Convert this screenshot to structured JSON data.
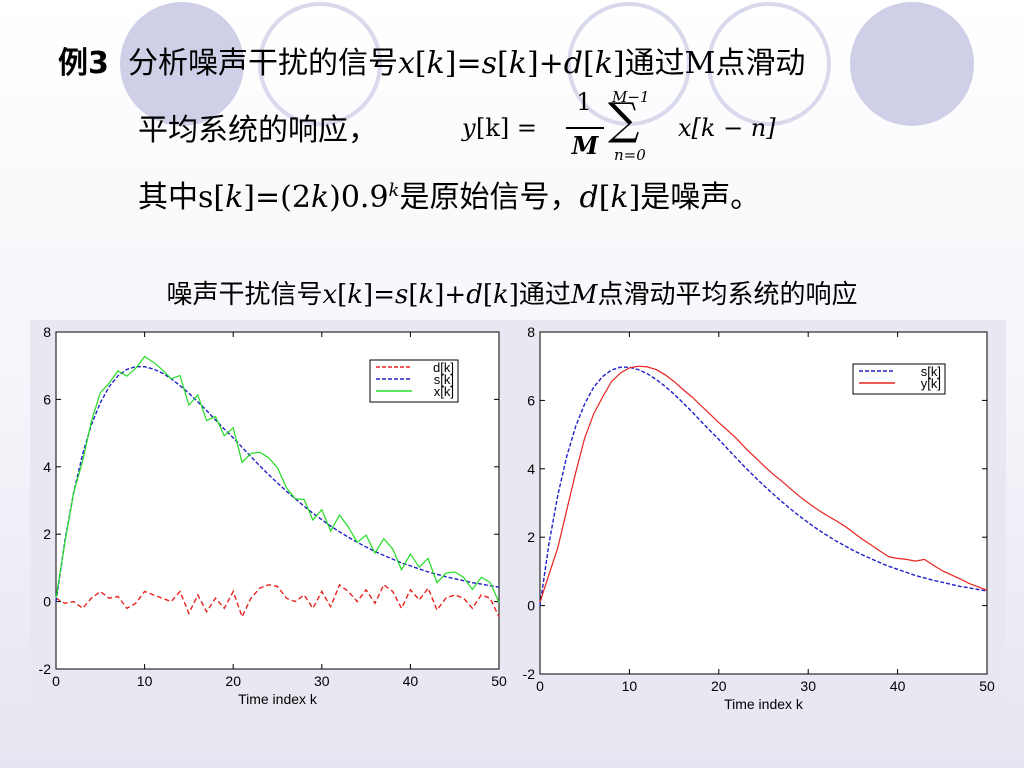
{
  "slide": {
    "example_label": "例3",
    "line1_a": "分析噪声干扰的信号",
    "line1_x": "x",
    "line1_b": "[",
    "line1_k1": "k",
    "line1_c": "]=",
    "line1_s": "s",
    "line1_d_open": "[",
    "line1_k2": "k",
    "line1_e": "]+",
    "line1_dd": "d",
    "line1_f": "[",
    "line1_k3": "k",
    "line1_g": "]通过M点滑动",
    "line2": "平均系统的响应，",
    "formula_y": "y",
    "formula_lhs": "[k] =",
    "formula_num": "1",
    "formula_den": "M",
    "formula_sum": "∑",
    "formula_upper": "M−1",
    "formula_lower": "n=0",
    "formula_term": "x[k − n]",
    "line3_a": "其中s[",
    "line3_k": "k",
    "line3_b": "]=(2",
    "line3_k2": "k",
    "line3_c": ")0.9",
    "line3_sup": "k",
    "line3_d": "是原始信号，",
    "line3_dd": "d",
    "line3_e": "[",
    "line3_k3": "k",
    "line3_f": "]是噪声。",
    "chart_title_a": "噪声干扰信号",
    "chart_title_x": "x",
    "chart_title_b": "[",
    "chart_title_k1": "k",
    "chart_title_c": "]=",
    "chart_title_s": "s",
    "chart_title_d": "[",
    "chart_title_k2": "k",
    "chart_title_e": "]+",
    "chart_title_dd": "d",
    "chart_title_f": "[",
    "chart_title_k3": "k",
    "chart_title_g": "]通过",
    "chart_title_m": "M",
    "chart_title_h": "点滑动平均系统的响应"
  },
  "chart_data": [
    {
      "type": "line",
      "xlabel": "Time index k",
      "ylabel": "",
      "xlim": [
        0,
        50
      ],
      "ylim": [
        -2,
        8
      ],
      "xticks": [
        0,
        10,
        20,
        30,
        40,
        50
      ],
      "yticks": [
        -2,
        0,
        2,
        4,
        6,
        8
      ],
      "legend_position": "top-right",
      "series": [
        {
          "name": "d[k]",
          "color": "#e8231f",
          "dash": true,
          "x": [
            0,
            1,
            2,
            3,
            4,
            5,
            6,
            7,
            8,
            9,
            10,
            11,
            12,
            13,
            14,
            15,
            16,
            17,
            18,
            19,
            20,
            21,
            22,
            23,
            24,
            25,
            26,
            27,
            28,
            29,
            30,
            31,
            32,
            33,
            34,
            35,
            36,
            37,
            38,
            39,
            40,
            41,
            42,
            43,
            44,
            45,
            46,
            47,
            48,
            49,
            50
          ],
          "values": [
            0.1,
            -0.05,
            0.0,
            -0.2,
            0.1,
            0.3,
            0.1,
            0.15,
            -0.2,
            -0.05,
            0.3,
            0.2,
            0.1,
            0.0,
            0.3,
            -0.35,
            0.2,
            -0.3,
            0.1,
            -0.2,
            0.3,
            -0.45,
            0.1,
            0.4,
            0.5,
            0.45,
            0.1,
            0.0,
            0.2,
            -0.2,
            0.3,
            -0.15,
            0.5,
            0.3,
            0.0,
            0.35,
            -0.05,
            0.5,
            0.3,
            -0.2,
            0.35,
            0.05,
            0.4,
            -0.25,
            0.1,
            0.2,
            0.1,
            -0.2,
            0.2,
            0.1,
            -0.45
          ]
        },
        {
          "name": "s[k]",
          "color": "#1f1fc8",
          "dash": true,
          "x": [
            0,
            1,
            2,
            3,
            4,
            5,
            6,
            7,
            8,
            9,
            10,
            11,
            12,
            13,
            14,
            15,
            16,
            17,
            18,
            19,
            20,
            21,
            22,
            23,
            24,
            25,
            26,
            27,
            28,
            29,
            30,
            31,
            32,
            33,
            34,
            35,
            36,
            37,
            38,
            39,
            40,
            41,
            42,
            43,
            44,
            45,
            46,
            47,
            48,
            49,
            50
          ],
          "values": [
            0.0,
            1.8,
            3.24,
            4.37,
            5.25,
            5.9,
            6.38,
            6.7,
            6.89,
            6.97,
            6.97,
            6.9,
            6.78,
            6.61,
            6.41,
            6.18,
            5.93,
            5.67,
            5.39,
            5.12,
            4.86,
            4.58,
            4.3,
            4.03,
            3.77,
            3.52,
            3.28,
            3.05,
            2.83,
            2.62,
            2.43,
            2.24,
            2.07,
            1.91,
            1.76,
            1.62,
            1.49,
            1.37,
            1.26,
            1.15,
            1.06,
            0.97,
            0.88,
            0.81,
            0.74,
            0.68,
            0.62,
            0.56,
            0.52,
            0.47,
            0.43
          ]
        },
        {
          "name": "x[k]",
          "color": "#22dd22",
          "dash": false,
          "x": [
            0,
            1,
            2,
            3,
            4,
            5,
            6,
            7,
            8,
            9,
            10,
            11,
            12,
            13,
            14,
            15,
            16,
            17,
            18,
            19,
            20,
            21,
            22,
            23,
            24,
            25,
            26,
            27,
            28,
            29,
            30,
            31,
            32,
            33,
            34,
            35,
            36,
            37,
            38,
            39,
            40,
            41,
            42,
            43,
            44,
            45,
            46,
            47,
            48,
            49,
            50
          ],
          "values": [
            0.1,
            1.75,
            3.24,
            4.17,
            5.35,
            6.2,
            6.48,
            6.85,
            6.69,
            6.92,
            7.27,
            7.1,
            6.88,
            6.61,
            6.71,
            5.83,
            6.13,
            5.37,
            5.49,
            4.92,
            5.16,
            4.13,
            4.4,
            4.43,
            4.27,
            3.97,
            3.38,
            3.05,
            3.03,
            2.42,
            2.73,
            2.09,
            2.57,
            2.21,
            1.76,
            1.97,
            1.44,
            1.87,
            1.56,
            0.95,
            1.41,
            1.02,
            1.28,
            0.56,
            0.84,
            0.88,
            0.72,
            0.36,
            0.72,
            0.57,
            -0.02
          ]
        }
      ]
    },
    {
      "type": "line",
      "xlabel": "Time index k",
      "ylabel": "",
      "xlim": [
        0,
        50
      ],
      "ylim": [
        -2,
        8
      ],
      "xticks": [
        0,
        10,
        20,
        30,
        40,
        50
      ],
      "yticks": [
        -2,
        0,
        2,
        4,
        6,
        8
      ],
      "legend_position": "top-right",
      "series": [
        {
          "name": "s[k]",
          "color": "#1f1fc8",
          "dash": true,
          "x": [
            0,
            1,
            2,
            3,
            4,
            5,
            6,
            7,
            8,
            9,
            10,
            11,
            12,
            13,
            14,
            15,
            16,
            17,
            18,
            19,
            20,
            21,
            22,
            23,
            24,
            25,
            26,
            27,
            28,
            29,
            30,
            31,
            32,
            33,
            34,
            35,
            36,
            37,
            38,
            39,
            40,
            41,
            42,
            43,
            44,
            45,
            46,
            47,
            48,
            49,
            50
          ],
          "values": [
            0.0,
            1.8,
            3.24,
            4.37,
            5.25,
            5.9,
            6.38,
            6.7,
            6.89,
            6.97,
            6.97,
            6.9,
            6.78,
            6.61,
            6.41,
            6.18,
            5.93,
            5.67,
            5.39,
            5.12,
            4.86,
            4.58,
            4.3,
            4.03,
            3.77,
            3.52,
            3.28,
            3.05,
            2.83,
            2.62,
            2.43,
            2.24,
            2.07,
            1.91,
            1.76,
            1.62,
            1.49,
            1.37,
            1.26,
            1.15,
            1.06,
            0.97,
            0.88,
            0.81,
            0.74,
            0.68,
            0.62,
            0.56,
            0.52,
            0.47,
            0.43
          ]
        },
        {
          "name": "y[k]",
          "color": "#e8231f",
          "dash": false,
          "x": [
            0,
            1,
            2,
            3,
            4,
            5,
            6,
            7,
            8,
            9,
            10,
            11,
            12,
            13,
            14,
            15,
            16,
            17,
            18,
            19,
            20,
            21,
            22,
            23,
            24,
            25,
            26,
            27,
            28,
            29,
            30,
            31,
            32,
            33,
            34,
            35,
            36,
            37,
            38,
            39,
            40,
            41,
            42,
            43,
            44,
            45,
            46,
            47,
            48,
            49,
            50
          ],
          "values": [
            0.1,
            0.9,
            1.7,
            2.8,
            3.9,
            4.9,
            5.6,
            6.1,
            6.55,
            6.8,
            6.95,
            7.0,
            6.98,
            6.9,
            6.75,
            6.55,
            6.32,
            6.1,
            5.85,
            5.6,
            5.35,
            5.12,
            4.88,
            4.6,
            4.35,
            4.1,
            3.86,
            3.65,
            3.42,
            3.2,
            3.0,
            2.82,
            2.65,
            2.5,
            2.34,
            2.15,
            1.95,
            1.78,
            1.6,
            1.43,
            1.38,
            1.35,
            1.3,
            1.35,
            1.18,
            1.02,
            0.9,
            0.78,
            0.65,
            0.55,
            0.45
          ]
        }
      ]
    }
  ]
}
